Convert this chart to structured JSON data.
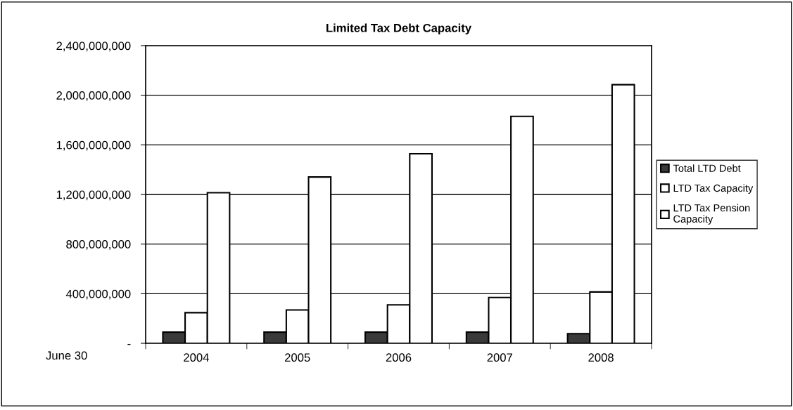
{
  "chart_data": {
    "type": "bar",
    "title": "Limited Tax Debt Capacity",
    "xlabel": "June 30",
    "categories": [
      "2004",
      "2005",
      "2006",
      "2007",
      "2008"
    ],
    "series": [
      {
        "name": "Total LTD Debt",
        "color": "#3a3a3a",
        "values": [
          90000000,
          90000000,
          90000000,
          90000000,
          78000000
        ]
      },
      {
        "name": "LTD Tax Capacity",
        "color": "#ffffff",
        "values": [
          247000000,
          269000000,
          310000000,
          369000000,
          414000000
        ]
      },
      {
        "name": "LTD Tax Pension Capacity",
        "color": "#ffffff",
        "values": [
          1214000000,
          1341000000,
          1528000000,
          1830000000,
          2085000000
        ]
      }
    ],
    "ylim": [
      0,
      2400000000
    ],
    "yticks": [
      {
        "value": 0,
        "label": "-"
      },
      {
        "value": 400000000,
        "label": "400,000,000"
      },
      {
        "value": 800000000,
        "label": "800,000,000"
      },
      {
        "value": 1200000000,
        "label": "1,200,000,000"
      },
      {
        "value": 1600000000,
        "label": "1,600,000,000"
      },
      {
        "value": 2000000000,
        "label": "2,000,000,000"
      },
      {
        "value": 2400000000,
        "label": "2,400,000,000"
      }
    ],
    "grid": "y",
    "legend": "right"
  }
}
